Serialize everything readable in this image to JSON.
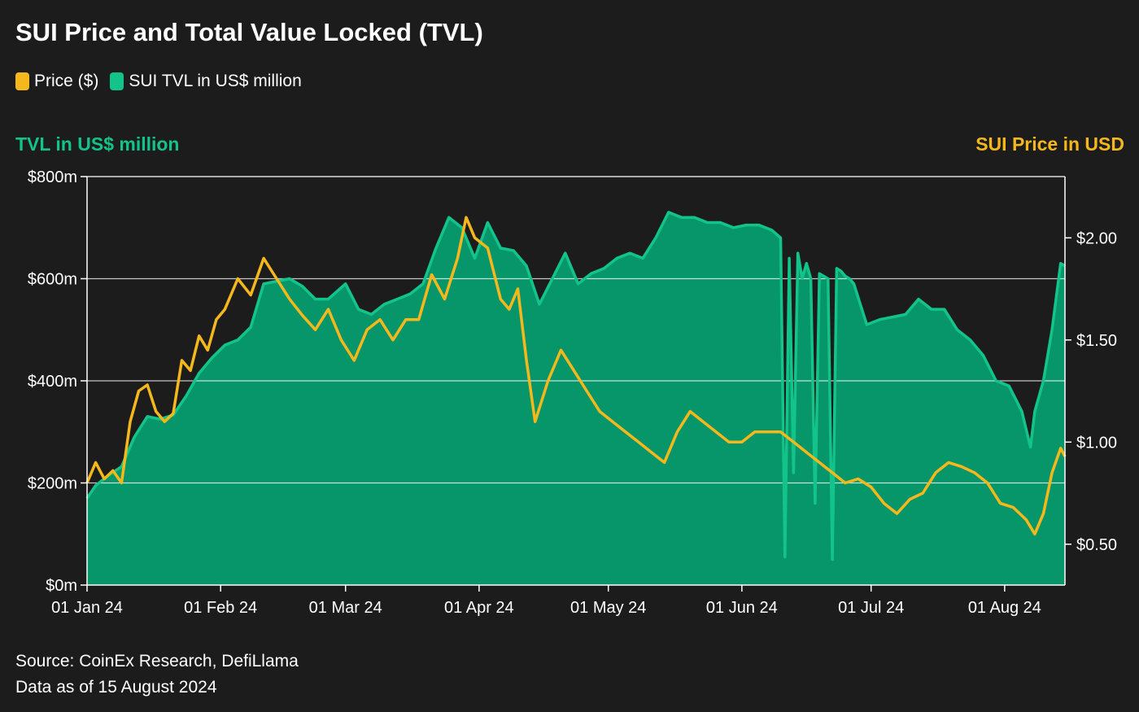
{
  "colors": {
    "background": "#1c1c1c",
    "price": "#f5b81c",
    "tvl_line": "#13c48a",
    "tvl_fill": "#07956a",
    "grid": "#ffffff"
  },
  "chart_data": {
    "type": "area",
    "title": "SUI Price and Total Value Locked (TVL)",
    "legend": [
      "Price ($)",
      "SUI TVL in US$ million"
    ],
    "legend_position": "top-left",
    "ylabel_left": "TVL in US$ million",
    "ylabel_right": "SUI Price in USD",
    "ylim_left": [
      0,
      800
    ],
    "ylim_right": [
      0.3,
      2.3
    ],
    "yticks_left": [
      "$0m",
      "$200m",
      "$400m",
      "$600m",
      "$800m"
    ],
    "yticks_right": [
      "$0.50",
      "$1.00",
      "$1.50",
      "$2.00"
    ],
    "xticks": [
      "01 Jan 24",
      "01 Feb 24",
      "01 Mar 24",
      "01 Apr 24",
      "01 May 24",
      "01 Jun 24",
      "01 Jul 24",
      "01 Aug 24"
    ],
    "grid": true,
    "series": [
      {
        "name": "SUI TVL in US$ million",
        "axis": "left",
        "x": [
          "2024-01-01",
          "2024-01-03",
          "2024-01-06",
          "2024-01-09",
          "2024-01-12",
          "2024-01-15",
          "2024-01-18",
          "2024-01-21",
          "2024-01-24",
          "2024-01-27",
          "2024-01-30",
          "2024-02-02",
          "2024-02-05",
          "2024-02-08",
          "2024-02-11",
          "2024-02-14",
          "2024-02-17",
          "2024-02-20",
          "2024-02-23",
          "2024-02-26",
          "2024-03-01",
          "2024-03-04",
          "2024-03-07",
          "2024-03-10",
          "2024-03-13",
          "2024-03-16",
          "2024-03-19",
          "2024-03-22",
          "2024-03-25",
          "2024-03-28",
          "2024-03-31",
          "2024-04-03",
          "2024-04-06",
          "2024-04-09",
          "2024-04-12",
          "2024-04-15",
          "2024-04-18",
          "2024-04-21",
          "2024-04-24",
          "2024-04-27",
          "2024-04-30",
          "2024-05-03",
          "2024-05-06",
          "2024-05-09",
          "2024-05-12",
          "2024-05-15",
          "2024-05-18",
          "2024-05-21",
          "2024-05-24",
          "2024-05-27",
          "2024-05-30",
          "2024-06-02",
          "2024-06-05",
          "2024-06-08",
          "2024-06-10",
          "2024-06-11",
          "2024-06-12",
          "2024-06-13",
          "2024-06-14",
          "2024-06-15",
          "2024-06-16",
          "2024-06-17",
          "2024-06-18",
          "2024-06-19",
          "2024-06-21",
          "2024-06-22",
          "2024-06-23",
          "2024-06-24",
          "2024-06-25",
          "2024-06-26",
          "2024-06-27",
          "2024-06-30",
          "2024-07-03",
          "2024-07-06",
          "2024-07-09",
          "2024-07-12",
          "2024-07-15",
          "2024-07-18",
          "2024-07-21",
          "2024-07-24",
          "2024-07-27",
          "2024-07-30",
          "2024-08-02",
          "2024-08-05",
          "2024-08-07",
          "2024-08-08",
          "2024-08-10",
          "2024-08-12",
          "2024-08-14",
          "2024-08-15"
        ],
        "values": [
          170,
          195,
          215,
          232,
          290,
          330,
          325,
          333,
          370,
          415,
          445,
          470,
          480,
          505,
          590,
          595,
          600,
          585,
          560,
          560,
          590,
          540,
          530,
          550,
          560,
          570,
          590,
          660,
          720,
          700,
          640,
          710,
          660,
          655,
          625,
          550,
          600,
          650,
          590,
          610,
          620,
          640,
          650,
          640,
          680,
          730,
          720,
          720,
          710,
          710,
          700,
          705,
          705,
          695,
          680,
          55,
          640,
          220,
          650,
          600,
          630,
          600,
          160,
          610,
          600,
          50,
          620,
          615,
          605,
          600,
          590,
          510,
          520,
          525,
          530,
          560,
          540,
          540,
          500,
          480,
          450,
          400,
          390,
          340,
          270,
          340,
          400,
          500,
          630,
          625
        ]
      },
      {
        "name": "Price ($)",
        "axis": "right",
        "x": [
          "2024-01-01",
          "2024-01-03",
          "2024-01-05",
          "2024-01-07",
          "2024-01-09",
          "2024-01-11",
          "2024-01-13",
          "2024-01-15",
          "2024-01-17",
          "2024-01-19",
          "2024-01-21",
          "2024-01-23",
          "2024-01-25",
          "2024-01-27",
          "2024-01-29",
          "2024-01-31",
          "2024-02-02",
          "2024-02-05",
          "2024-02-08",
          "2024-02-11",
          "2024-02-14",
          "2024-02-17",
          "2024-02-20",
          "2024-02-23",
          "2024-02-26",
          "2024-02-29",
          "2024-03-03",
          "2024-03-06",
          "2024-03-09",
          "2024-03-12",
          "2024-03-15",
          "2024-03-18",
          "2024-03-21",
          "2024-03-24",
          "2024-03-27",
          "2024-03-29",
          "2024-03-31",
          "2024-04-03",
          "2024-04-06",
          "2024-04-08",
          "2024-04-10",
          "2024-04-12",
          "2024-04-14",
          "2024-04-17",
          "2024-04-20",
          "2024-04-23",
          "2024-04-26",
          "2024-04-29",
          "2024-05-02",
          "2024-05-05",
          "2024-05-08",
          "2024-05-11",
          "2024-05-14",
          "2024-05-17",
          "2024-05-20",
          "2024-05-23",
          "2024-05-26",
          "2024-05-29",
          "2024-06-01",
          "2024-06-04",
          "2024-06-07",
          "2024-06-10",
          "2024-06-13",
          "2024-06-16",
          "2024-06-19",
          "2024-06-22",
          "2024-06-25",
          "2024-06-28",
          "2024-07-01",
          "2024-07-04",
          "2024-07-07",
          "2024-07-10",
          "2024-07-13",
          "2024-07-16",
          "2024-07-19",
          "2024-07-22",
          "2024-07-25",
          "2024-07-28",
          "2024-07-31",
          "2024-08-03",
          "2024-08-06",
          "2024-08-08",
          "2024-08-10",
          "2024-08-12",
          "2024-08-14",
          "2024-08-15"
        ],
        "values": [
          0.8,
          0.9,
          0.82,
          0.86,
          0.8,
          1.1,
          1.25,
          1.28,
          1.15,
          1.1,
          1.14,
          1.4,
          1.35,
          1.52,
          1.45,
          1.6,
          1.65,
          1.8,
          1.72,
          1.9,
          1.8,
          1.7,
          1.62,
          1.55,
          1.65,
          1.5,
          1.4,
          1.55,
          1.6,
          1.5,
          1.6,
          1.6,
          1.82,
          1.7,
          1.9,
          2.1,
          2.0,
          1.95,
          1.7,
          1.65,
          1.75,
          1.4,
          1.1,
          1.3,
          1.45,
          1.35,
          1.25,
          1.15,
          1.1,
          1.05,
          1.0,
          0.95,
          0.9,
          1.05,
          1.15,
          1.1,
          1.05,
          1.0,
          1.0,
          1.05,
          1.05,
          1.05,
          1.0,
          0.95,
          0.9,
          0.85,
          0.8,
          0.82,
          0.78,
          0.7,
          0.65,
          0.72,
          0.75,
          0.85,
          0.9,
          0.88,
          0.85,
          0.8,
          0.7,
          0.68,
          0.62,
          0.55,
          0.65,
          0.85,
          0.97,
          0.93
        ]
      }
    ]
  },
  "footer": {
    "source": "Source: CoinEx Research, DefiLlama",
    "data_as_of": "Data as of 15 August 2024"
  }
}
